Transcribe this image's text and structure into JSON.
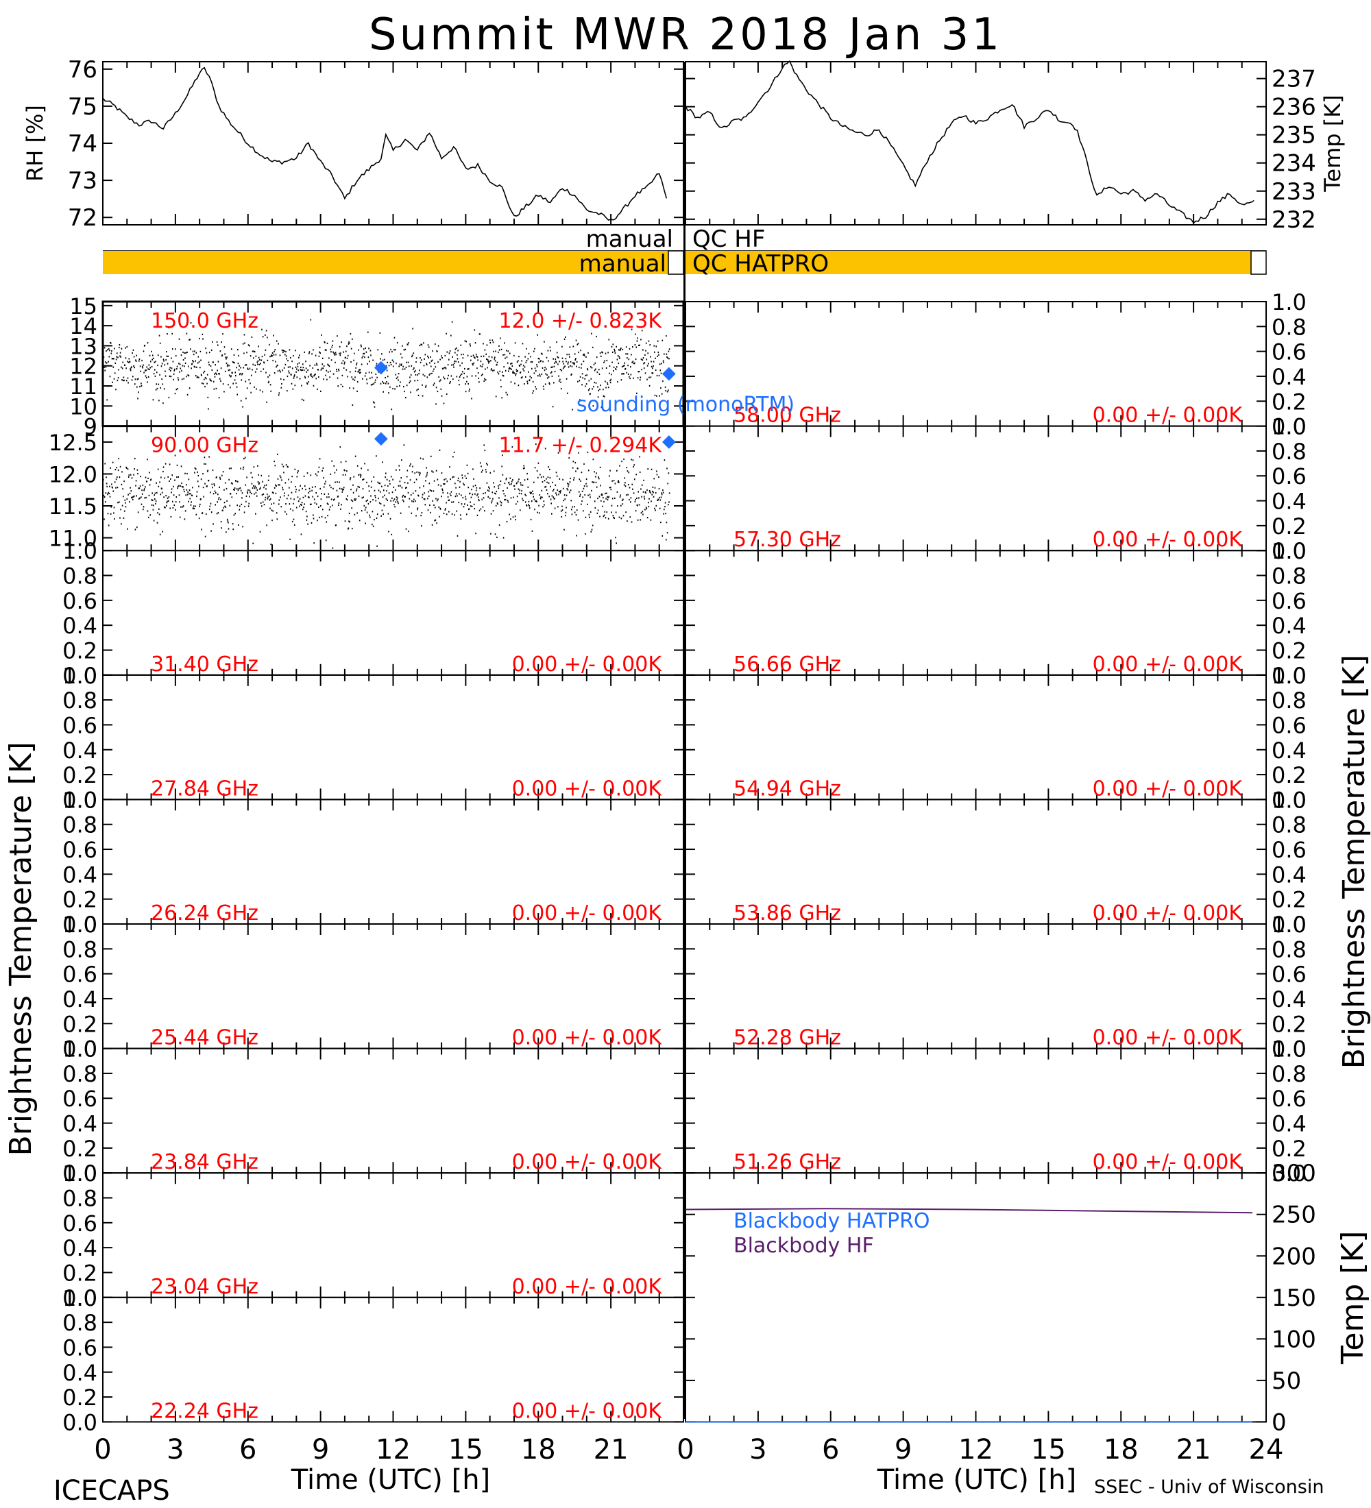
{
  "title": "Summit MWR 2018 Jan 31",
  "footer": {
    "left": "ICECAPS",
    "right": "SSEC - Univ of Wisconsin",
    "xlabel": "Time (UTC) [h]"
  },
  "colors": {
    "text_red": "#ff0000",
    "sounding": "#1f6fff",
    "qc_bar": "#fcc200",
    "bb_hf": "#5a1e6a",
    "bb_hatpro": "#1f6fff",
    "trace": "#000000"
  },
  "qc": {
    "hf_left": "manual",
    "hf_right": "QC HF",
    "hatpro_left": "manual",
    "hatpro_right": "QC HATPRO"
  },
  "axis_labels": {
    "rh": "RH [%]",
    "temp": "Temp [K]",
    "tb_left": "Brightness Temperature [K]",
    "tb_right": "Brightness Temperature [K]",
    "bb_temp": "Temp [K]"
  },
  "legend": {
    "sounding": "sounding (monoRTM)",
    "bb_hatpro": "Blackbody HATPRO",
    "bb_hf": "Blackbody HF"
  },
  "x_ticks_left": [
    "0",
    "3",
    "6",
    "9",
    "12",
    "15",
    "18",
    "21"
  ],
  "x_ticks_right": [
    "0",
    "3",
    "6",
    "9",
    "12",
    "15",
    "18",
    "21",
    "24"
  ],
  "chart_data": [
    {
      "type": "line",
      "title": "",
      "xlabel": "",
      "ylabel": "RH [%]",
      "xlim": [
        0,
        24
      ],
      "ylim": [
        71.8,
        76.2
      ],
      "yticks": [
        "72",
        "73",
        "74",
        "75",
        "76"
      ],
      "series": [
        {
          "x": [
            0,
            0.5,
            1,
            1.5,
            2,
            2.5,
            3,
            3.5,
            4,
            4.2,
            4.4,
            4.8,
            5.2,
            5.6,
            6,
            6.5,
            7,
            7.5,
            8,
            8.5,
            9,
            9.5,
            10,
            10.5,
            11,
            11.5,
            11.7,
            12,
            12.5,
            13,
            13.5,
            14,
            14.5,
            15,
            15.5,
            16,
            16.5,
            17,
            17.5,
            18,
            18.5,
            19,
            19.5,
            20,
            20.5,
            21,
            21.5,
            22,
            22.5,
            23,
            23.3
          ],
          "y": [
            75.2,
            75,
            74.7,
            74.5,
            74.6,
            74.4,
            74.8,
            75.3,
            75.9,
            76,
            75.8,
            75,
            74.6,
            74.3,
            74,
            73.7,
            73.5,
            73.5,
            73.6,
            74,
            73.5,
            73.1,
            72.5,
            73,
            73.3,
            73.6,
            74.2,
            73.8,
            74.1,
            73.8,
            74.3,
            73.6,
            73.9,
            73.3,
            73.4,
            73.0,
            72.8,
            72.0,
            72.3,
            72.6,
            72.4,
            72.8,
            72.6,
            72.2,
            72.1,
            71.9,
            72.2,
            72.6,
            72.8,
            73.2,
            72.5
          ]
        }
      ]
    },
    {
      "type": "line",
      "title": "",
      "xlabel": "",
      "ylabel": "Temp [K]",
      "xlim": [
        0,
        24
      ],
      "ylim": [
        231.8,
        237.6
      ],
      "yticks": [
        "232",
        "233",
        "234",
        "235",
        "236",
        "237"
      ],
      "series": [
        {
          "x": [
            0,
            0.5,
            1,
            1.5,
            2,
            2.5,
            3,
            3.5,
            4,
            4.3,
            4.6,
            5,
            5.5,
            6,
            6.5,
            7,
            7.5,
            8,
            8.5,
            9,
            9.5,
            10,
            10.5,
            11,
            11.5,
            12,
            12.5,
            13,
            13.5,
            14,
            14.5,
            15,
            15.5,
            16,
            16.2,
            16.4,
            17,
            17.5,
            18,
            18.5,
            19,
            19.5,
            20,
            20.5,
            21,
            21.5,
            22,
            22.5,
            23,
            23.5
          ],
          "y": [
            236,
            235.6,
            235.8,
            235.2,
            235.5,
            235.6,
            236.2,
            236.7,
            237.4,
            237.6,
            237.1,
            236.6,
            236.1,
            235.6,
            235.3,
            235.1,
            235.0,
            235.2,
            234.6,
            233.9,
            233.2,
            234.1,
            234.8,
            235.4,
            235.7,
            235.4,
            235.6,
            235.9,
            236.1,
            235.3,
            235.6,
            235.9,
            235.5,
            235.4,
            235.1,
            234.6,
            232.8,
            233.2,
            232.9,
            233.0,
            232.7,
            232.9,
            232.5,
            232.2,
            231.9,
            232.1,
            232.6,
            232.9,
            232.5,
            232.6
          ]
        }
      ]
    },
    {
      "type": "scatter",
      "label": "150.0 GHz",
      "stat": "12.0 +/- 0.823K",
      "xlim": [
        0,
        24
      ],
      "ylim": [
        9,
        15.2
      ],
      "yticks": [
        "9",
        "10",
        "11",
        "12",
        "13",
        "14",
        "15"
      ],
      "mean": 12.0,
      "std": 0.823,
      "sounding": [
        {
          "x": 11.5,
          "y": 11.9
        },
        {
          "x": 23.4,
          "y": 11.6
        }
      ]
    },
    {
      "type": "scatter",
      "label": "90.00 GHz",
      "stat": "11.7 +/- 0.294K",
      "xlim": [
        0,
        24
      ],
      "ylim": [
        10.8,
        12.75
      ],
      "yticks": [
        "11.0",
        "11.5",
        "12.0",
        "12.5"
      ],
      "mean": 11.7,
      "std": 0.294,
      "sounding": [
        {
          "x": 11.5,
          "y": 12.55
        },
        {
          "x": 23.4,
          "y": 12.5
        }
      ]
    },
    {
      "type": "line",
      "title": "",
      "ylabel": "Temp [K]",
      "xlabel": "Time (UTC) [h]",
      "xlim": [
        0,
        24
      ],
      "ylim": [
        0,
        300
      ],
      "yticks": [
        "0",
        "50",
        "100",
        "150",
        "200",
        "250",
        "300"
      ],
      "series": [
        {
          "name": "Blackbody HF",
          "x": [
            0,
            6,
            12,
            18,
            24
          ],
          "y": [
            256,
            257,
            256,
            254,
            252
          ]
        },
        {
          "name": "Blackbody HATPRO",
          "x": [
            0,
            24
          ],
          "y": [
            0,
            0
          ]
        }
      ]
    }
  ],
  "empty_panels": {
    "yticks": [
      "0.0",
      "0.2",
      "0.4",
      "0.6",
      "0.8",
      "1.0"
    ],
    "stat": "0.00 +/- 0.00K",
    "left": [
      "31.40 GHz",
      "27.84 GHz",
      "26.24 GHz",
      "25.44 GHz",
      "23.84 GHz",
      "23.04 GHz",
      "22.24 GHz"
    ],
    "right": [
      "58.00 GHz",
      "57.30 GHz",
      "56.66 GHz",
      "54.94 GHz",
      "53.86 GHz",
      "52.28 GHz",
      "51.26 GHz"
    ]
  }
}
